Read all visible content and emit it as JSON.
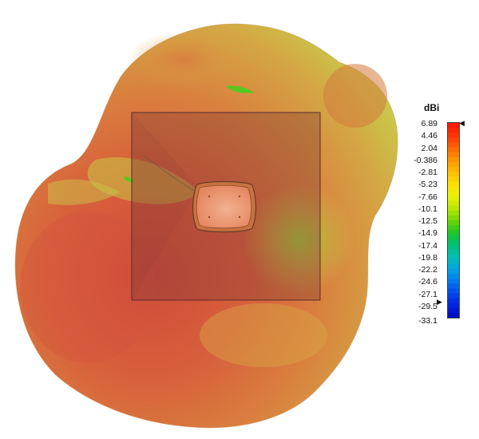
{
  "legend": {
    "unit": "dBi",
    "ticks": [
      "6.89",
      "4.46",
      "2.04",
      "-0.386",
      "-2.81",
      "-5.23",
      "-7.66",
      "-10.1",
      "-12.5",
      "-14.9",
      "-17.4",
      "-19.8",
      "-22.2",
      "-24.6",
      "-27.1",
      "-29.5",
      "-33.1"
    ],
    "max": 6.89,
    "min": -33.1,
    "colors": [
      "#ff1a00",
      "#ff3a00",
      "#ff6a00",
      "#ff9a00",
      "#ffc000",
      "#ffe000",
      "#eaf000",
      "#b8e800",
      "#70d800",
      "#20c820",
      "#00c070",
      "#00c0b0",
      "#00a8e0",
      "#0080f0",
      "#0050f0",
      "#0028e0",
      "#0010c8"
    ]
  },
  "scene": {
    "pattern_colors": {
      "dominant": "#d8653c",
      "warm": "#cc4a36",
      "mid": "#d99b3c",
      "low": "#c8cf45",
      "lowest": "#80cc2a",
      "substrate": "#8c3d34",
      "device": "#f0a07a"
    }
  }
}
